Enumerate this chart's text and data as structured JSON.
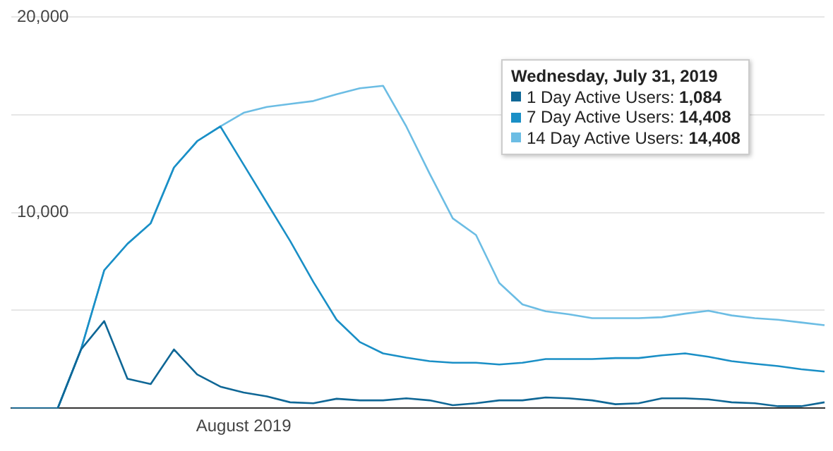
{
  "chart_data": {
    "type": "line",
    "categories": [
      null,
      null,
      null,
      null,
      null,
      null,
      null,
      null,
      null,
      null,
      "August 2019",
      null,
      null,
      null,
      null,
      null,
      null,
      null,
      null,
      null,
      null,
      null,
      null,
      null,
      null,
      null,
      null,
      null,
      null,
      null,
      null,
      null,
      null,
      null,
      null,
      null
    ],
    "series": [
      {
        "color": "#0f6796",
        "values": [
          0,
          0,
          0,
          3000,
          4450,
          1500,
          1230,
          3000,
          1720,
          1100,
          800,
          600,
          300,
          250,
          480,
          400,
          400,
          500,
          400,
          150,
          250,
          400,
          400,
          550,
          500,
          400,
          200,
          250,
          500,
          500,
          450,
          300,
          250,
          100,
          100,
          300
        ]
      },
      {
        "color": "#1a8fc6",
        "values": [
          0,
          0,
          0,
          3000,
          7050,
          8400,
          9450,
          12300,
          13650,
          14400,
          12450,
          10500,
          8550,
          6450,
          4520,
          3380,
          2800,
          2580,
          2400,
          2320,
          2320,
          2230,
          2320,
          2510,
          2510,
          2510,
          2560,
          2560,
          2700,
          2800,
          2630,
          2400,
          2270,
          2150,
          1990,
          1870
        ]
      },
      {
        "color": "#6cbde4",
        "values": [
          0,
          0,
          0,
          3000,
          7050,
          8400,
          9450,
          12300,
          13650,
          14400,
          15100,
          15400,
          15550,
          15700,
          16050,
          16350,
          16480,
          14400,
          12000,
          9700,
          8850,
          6400,
          5300,
          4950,
          4800,
          4600,
          4600,
          4600,
          4650,
          4830,
          4980,
          4740,
          4600,
          4520,
          4380,
          4240
        ]
      }
    ],
    "ylim": [
      0,
      20000
    ],
    "yticks": [
      {
        "value": 0,
        "label": null
      },
      {
        "value": 5000,
        "label": null
      },
      {
        "value": 10000,
        "label": "10,000"
      },
      {
        "value": 15000,
        "label": null
      },
      {
        "value": 20000,
        "label": "20,000"
      }
    ],
    "grid": "y",
    "annotations": [
      "Wednesday, July 31, 2019",
      "1 Day Active Users: 1,084",
      "7 Day Active Users: 14,408",
      "14 Day Active Users: 14,408"
    ]
  }
}
